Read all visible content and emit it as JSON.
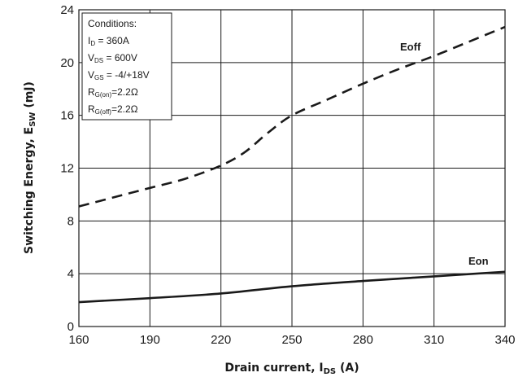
{
  "chart_data": {
    "type": "line",
    "xlabel_main": "Drain current, I",
    "xlabel_sub": "DS",
    "xlabel_unit": " (A)",
    "ylabel_main": "Switching Energy, E",
    "ylabel_sub": "SW",
    "ylabel_unit": " (mJ)",
    "xlim": [
      160,
      340
    ],
    "ylim": [
      0,
      24
    ],
    "xticks": [
      160,
      190,
      220,
      250,
      280,
      310,
      340
    ],
    "yticks": [
      0,
      4,
      8,
      12,
      16,
      20,
      24
    ],
    "grid": true,
    "series": [
      {
        "name": "Eoff",
        "style": "dashed",
        "color": "#1a1a1a",
        "x": [
          160,
          175,
          190,
          205,
          220,
          230,
          240,
          250,
          265,
          280,
          295,
          310,
          325,
          340
        ],
        "y": [
          9.1,
          9.8,
          10.5,
          11.2,
          12.2,
          13.2,
          14.7,
          16.0,
          17.2,
          18.4,
          19.5,
          20.5,
          21.6,
          22.7
        ]
      },
      {
        "name": "Eon",
        "style": "solid",
        "color": "#1a1a1a",
        "x": [
          160,
          190,
          220,
          250,
          280,
          310,
          340
        ],
        "y": [
          1.85,
          2.15,
          2.5,
          3.05,
          3.45,
          3.8,
          4.15
        ]
      }
    ],
    "conditions": [
      {
        "main": "Conditions:",
        "sub": "",
        "rest": ""
      },
      {
        "main": "I",
        "sub": "D",
        "rest": " = 360A"
      },
      {
        "main": "V",
        "sub": "DS",
        "rest": " = 600V"
      },
      {
        "main": "V",
        "sub": "GS",
        "rest": " = -4/+18V"
      },
      {
        "main": "R",
        "sub": "G(on)",
        "rest": "=2.2Ω"
      },
      {
        "main": "R",
        "sub": "G(off)",
        "rest": "=2.2Ω"
      }
    ]
  }
}
